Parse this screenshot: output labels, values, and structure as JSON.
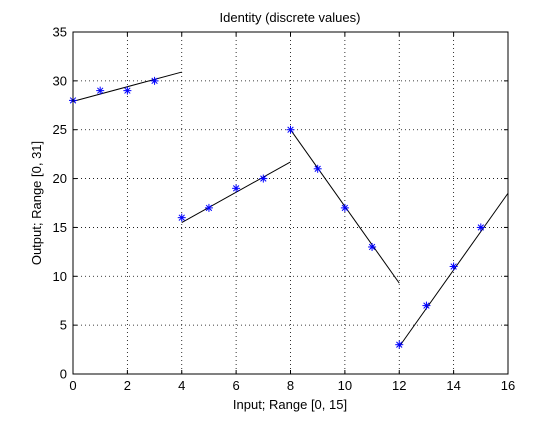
{
  "chart_data": {
    "type": "scatter",
    "title": "Identity (discrete values)",
    "xlabel": "Input; Range [0, 15]",
    "ylabel": "Output; Range [0, 31]",
    "xlim": [
      0,
      16
    ],
    "ylim": [
      0,
      35
    ],
    "xticks": [
      0,
      2,
      4,
      6,
      8,
      10,
      12,
      14,
      16
    ],
    "yticks": [
      0,
      5,
      10,
      15,
      20,
      25,
      30,
      35
    ],
    "grid": true,
    "legend": "none",
    "colors": {
      "marker": "#0000ff",
      "line": "#000000",
      "grid": "#000000"
    },
    "series": [
      {
        "marker": "asterisk",
        "x": [
          0,
          1,
          2,
          3,
          4,
          5,
          6,
          7,
          8,
          9,
          10,
          11,
          12,
          13,
          14,
          15
        ],
        "y": [
          28,
          29,
          29,
          30,
          16,
          17,
          19,
          20,
          25,
          21,
          17,
          13,
          3,
          7,
          11,
          15
        ]
      }
    ],
    "fit_lines": [
      {
        "x": [
          0,
          4
        ],
        "y": [
          27.9,
          30.9
        ]
      },
      {
        "x": [
          4,
          8
        ],
        "y": [
          15.5,
          21.7
        ]
      },
      {
        "x": [
          8,
          12
        ],
        "y": [
          25.0,
          9.3
        ]
      },
      {
        "x": [
          12,
          16
        ],
        "y": [
          2.8,
          18.5
        ]
      }
    ]
  }
}
